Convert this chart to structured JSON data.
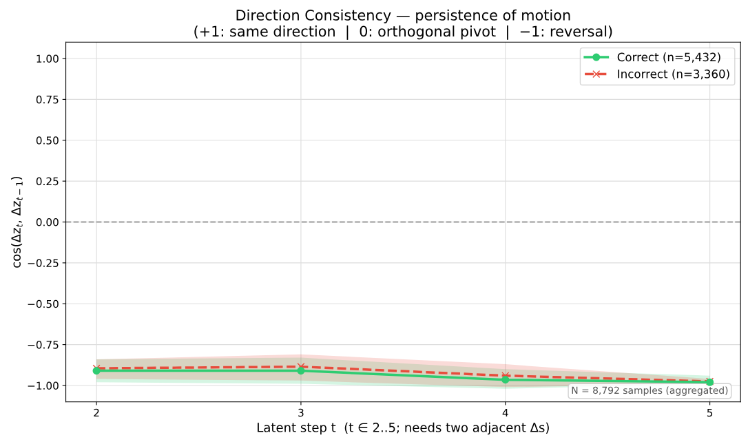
{
  "chart_data": {
    "type": "line",
    "title": "Direction Consistency — persistence of motion\n(+1: same direction  |  0: orthogonal pivot  |  −1: reversal)",
    "xlabel": "Latent step t  (t ∈ 2..5; needs two adjacent Δs)",
    "ylabel": "cos(Δz$_{t}$, Δz$_{t−1}$)",
    "x": [
      2,
      3,
      4,
      5
    ],
    "series": [
      {
        "name": "Correct (n=5,432)",
        "color": "#2ecc71",
        "marker": "circle",
        "line_style": "solid",
        "values": [
          -0.91,
          -0.91,
          -0.965,
          -0.98
        ],
        "lower": [
          -0.98,
          -0.99,
          -1.02,
          -0.99
        ],
        "upper": [
          -0.84,
          -0.83,
          -0.9,
          -0.94
        ]
      },
      {
        "name": "Incorrect (n=3,360)",
        "color": "#e74c3c",
        "marker": "cross",
        "line_style": "dashed",
        "values": [
          -0.895,
          -0.885,
          -0.94,
          -0.975
        ],
        "lower": [
          -0.96,
          -0.97,
          -1.01,
          -0.99
        ],
        "upper": [
          -0.84,
          -0.81,
          -0.87,
          -0.96
        ]
      }
    ],
    "xlim": [
      1.85,
      5.15
    ],
    "xticks": [
      2,
      3,
      4,
      5
    ],
    "ylim": [
      -1.1,
      1.1
    ],
    "yticks": [
      {
        "value": -1,
        "label": "−1.00"
      },
      {
        "value": -0.75,
        "label": "−0.75"
      },
      {
        "value": -0.5,
        "label": "−0.50"
      },
      {
        "value": -0.25,
        "label": "−0.25"
      },
      {
        "value": 0,
        "label": "0.00"
      },
      {
        "value": 0.25,
        "label": "0.25"
      },
      {
        "value": 0.5,
        "label": "0.50"
      },
      {
        "value": 0.75,
        "label": "0.75"
      },
      {
        "value": 1,
        "label": "1.00"
      }
    ],
    "ref_lines": [
      {
        "axis": "y",
        "value": 0,
        "label": null,
        "color": "#999999",
        "line_style": "dashed"
      }
    ],
    "annotations": [
      "N = 8,792 samples (aggregated)"
    ],
    "grid": true,
    "legend": "top right"
  }
}
